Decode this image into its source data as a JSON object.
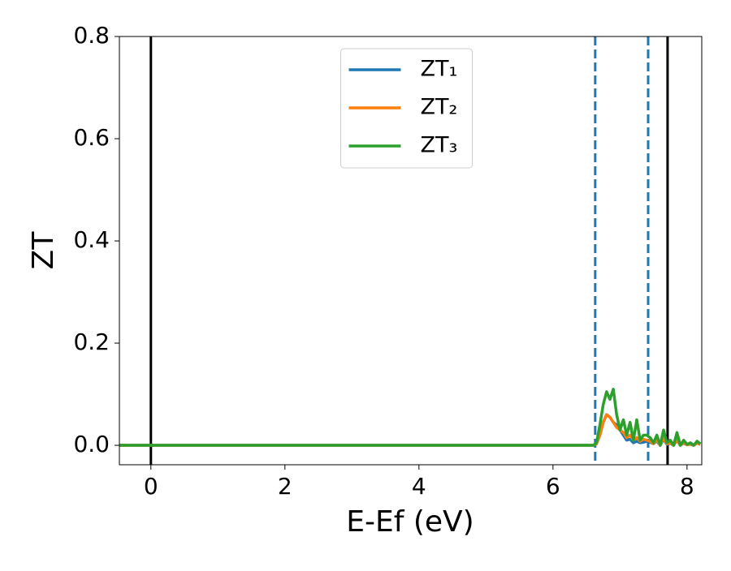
{
  "chart_data": {
    "type": "line",
    "x_label": "E-Ef (eV)",
    "y_label": "ZT",
    "xlim": [
      -0.47,
      8.22
    ],
    "ylim": [
      -0.038,
      0.8
    ],
    "xticks": [
      0,
      2,
      4,
      6,
      8
    ],
    "yticks": [
      {
        "value": 0,
        "label": "0.0"
      },
      0.2,
      0.4,
      0.6,
      0.8
    ],
    "grid": false,
    "legend": "upper center",
    "vlines": [
      0,
      7.71
    ],
    "vline_color": "#000000",
    "dashed_vlines": [
      6.63,
      7.42
    ],
    "dashed_vline_color": "#1f77b4",
    "x": [
      -0.47,
      6.6,
      6.65,
      6.7,
      6.75,
      6.8,
      6.85,
      6.9,
      6.95,
      7.0,
      7.05,
      7.1,
      7.15,
      7.2,
      7.25,
      7.3,
      7.35,
      7.4,
      7.45,
      7.5,
      7.55,
      7.6,
      7.65,
      7.7,
      7.75,
      7.8,
      7.85,
      7.9,
      7.95,
      8.0,
      8.05,
      8.1,
      8.15,
      8.2
    ],
    "series": [
      {
        "name": "ZT₁",
        "color": "#1f77b4",
        "values": [
          0,
          0,
          0.003,
          0.02,
          0.045,
          0.06,
          0.055,
          0.045,
          0.04,
          0.03,
          0.02,
          0.01,
          0.012,
          0.005,
          0.008,
          0.005,
          0.006,
          0.008,
          0.006,
          0.003,
          0.008,
          0,
          0.012,
          0.002,
          0.004,
          0,
          0.01,
          0,
          0.004,
          0.001,
          0.002,
          0,
          0.004,
          0.002
        ]
      },
      {
        "name": "ZT₂",
        "color": "#ff7f0e",
        "values": [
          0,
          0,
          0.003,
          0.02,
          0.045,
          0.06,
          0.055,
          0.045,
          0.035,
          0.03,
          0.025,
          0.015,
          0.02,
          0.01,
          0.015,
          0.008,
          0.012,
          0.01,
          0.008,
          0.003,
          0.01,
          0,
          0.015,
          0.003,
          0.005,
          0,
          0.012,
          0,
          0.005,
          0.001,
          0.003,
          0,
          0.004,
          0.002
        ]
      },
      {
        "name": "ZT₃",
        "color": "#2ca02c",
        "values": [
          0,
          0,
          0.005,
          0.04,
          0.08,
          0.105,
          0.09,
          0.11,
          0.06,
          0.03,
          0.05,
          0.02,
          0.045,
          0.01,
          0.05,
          0.01,
          0.02,
          0.02,
          0.015,
          0.005,
          0.02,
          0,
          0.03,
          0.005,
          0.01,
          0,
          0.025,
          0,
          0.01,
          0.002,
          0.005,
          0,
          0.008,
          0.003
        ]
      }
    ]
  }
}
